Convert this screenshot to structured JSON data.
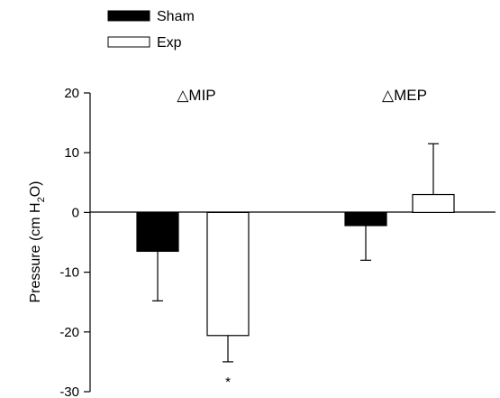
{
  "chart_data": {
    "type": "bar",
    "title": "",
    "xlabel": "",
    "ylabel": "Pressure (cm H2O)",
    "ylabel_parts": {
      "before": "Pressure (cm H",
      "sub": "2",
      "after": "O)"
    },
    "ylim": [
      -30,
      20
    ],
    "yticks": [
      -30,
      -20,
      -10,
      0,
      10,
      20
    ],
    "ytick_labels": [
      "-30",
      "-20",
      "-10",
      "0",
      "10",
      "20"
    ],
    "categories": [
      "△MIP",
      "△MEP"
    ],
    "series": [
      {
        "name": "Sham",
        "color": "#000000",
        "values": [
          -6.5,
          -2.2
        ],
        "error": [
          8.3,
          5.8
        ]
      },
      {
        "name": "Exp",
        "color": "#ffffff",
        "values": [
          -20.6,
          3.0
        ],
        "error": [
          4.4,
          8.5
        ]
      }
    ],
    "annotations": [
      {
        "text": "*",
        "category": 0,
        "series": 1,
        "y": -28
      }
    ],
    "legend": {
      "position": "top-left"
    },
    "grid": false
  }
}
